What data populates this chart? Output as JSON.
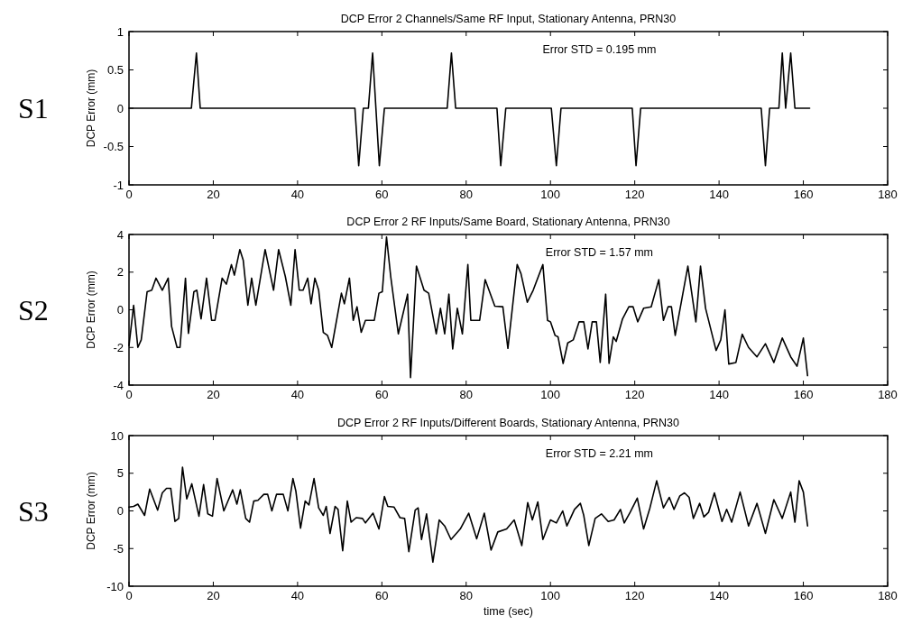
{
  "chart_data": [
    {
      "type": "line",
      "title": "DCP Error 2 Channels/Same RF Input, Stationary Antenna, PRN30",
      "ylabel": "DCP Error (mm)",
      "annotations": [
        "S1",
        "Error STD = 0.195 mm"
      ],
      "xlim": [
        0,
        180
      ],
      "xticks": [
        0,
        20,
        40,
        60,
        80,
        100,
        120,
        140,
        160,
        180
      ],
      "ylim": [
        -1,
        1
      ],
      "yticks": [
        -1,
        {
          "value": -0.5,
          "label": "-0.5"
        },
        0,
        {
          "value": 0.5,
          "label": "0.5"
        },
        1
      ],
      "grid": false,
      "series": [
        {
          "color": "#000000",
          "x": [
            0,
            14.8,
            16,
            16.9,
            53.6,
            54.5,
            55.6,
            56.8,
            57.8,
            59.4,
            60.6,
            75.5,
            76.5,
            77.5,
            87.3,
            88.2,
            89.4,
            100.2,
            101.4,
            102.5,
            119.4,
            120.3,
            121.4,
            150,
            151,
            152,
            154.2,
            155,
            155.8,
            157,
            158,
            161.5
          ],
          "values": [
            0,
            0,
            0.72,
            0,
            0,
            -0.75,
            0,
            0,
            0.72,
            -0.75,
            0,
            0,
            0.72,
            0,
            0,
            -0.75,
            0,
            0,
            -0.75,
            0,
            0,
            -0.75,
            0,
            0,
            -0.75,
            0,
            0,
            0.72,
            0,
            0.72,
            0,
            0
          ]
        }
      ]
    },
    {
      "type": "line",
      "title": "DCP Error 2 RF Inputs/Same Board, Stationary Antenna, PRN30",
      "ylabel": "DCP Error (mm)",
      "annotations": [
        "S2",
        "Error STD = 1.57 mm"
      ],
      "xlim": [
        0,
        180
      ],
      "xticks": [
        0,
        20,
        40,
        60,
        80,
        100,
        120,
        140,
        160,
        180
      ],
      "ylim": [
        -4,
        4
      ],
      "yticks": [
        -4,
        -2,
        0,
        2,
        4
      ],
      "grid": false,
      "series": [
        {
          "color": "#000000",
          "x": [
            0,
            1.1,
            2.1,
            2.9,
            4.3,
            5.4,
            6.4,
            7.9,
            9.3,
            10.1,
            11.4,
            12.1,
            13.4,
            14.1,
            15.4,
            16.1,
            17.1,
            18.4,
            19.6,
            20.4,
            22.1,
            23.1,
            24.3,
            25,
            26.3,
            27.1,
            28.2,
            29.1,
            30.1,
            32.3,
            34.3,
            35.5,
            37.1,
            38.4,
            39.4,
            40.4,
            41.3,
            42.4,
            43.2,
            44.1,
            45,
            46.1,
            47.1,
            48.1,
            50.4,
            51.1,
            52.3,
            53.2,
            54.1,
            55.1,
            56.1,
            58.2,
            59.3,
            60.1,
            61.1,
            62.1,
            63.9,
            66.1,
            66.8,
            68.2,
            70,
            71.1,
            72.9,
            73.9,
            74.9,
            75.9,
            76.8,
            77.9,
            79.1,
            80.4,
            81.1,
            83.2,
            84.5,
            86.8,
            88.7,
            89.9,
            92.1,
            93,
            94.5,
            95.9,
            98.2,
            99.3,
            100,
            101.1,
            101.8,
            103,
            104.1,
            105.4,
            106.8,
            107.9,
            108.9,
            109.9,
            110.9,
            111.8,
            113.1,
            113.9,
            114.9,
            115.6,
            117.1,
            118.6,
            119.6,
            120.7,
            122.1,
            123.9,
            125.7,
            126.8,
            127.9,
            128.7,
            129.6,
            132.6,
            134.5,
            135.6,
            136.8,
            139.3,
            140.4,
            141.4,
            142.3,
            144,
            145.5,
            147,
            149,
            151,
            153,
            155,
            157,
            158.5,
            160,
            161
          ],
          "values": [
            -1.9,
            0.24,
            -2,
            -1.6,
            0.96,
            1.04,
            1.68,
            1.04,
            1.68,
            -0.88,
            -2,
            -2,
            1.68,
            -1.25,
            0.96,
            1.04,
            -0.48,
            1.68,
            -0.56,
            -0.56,
            1.68,
            1.36,
            2.4,
            1.84,
            3.2,
            2.64,
            0.24,
            1.68,
            0.24,
            3.2,
            1.04,
            3.2,
            1.76,
            0.24,
            3.2,
            1.04,
            1.04,
            1.68,
            0.32,
            1.68,
            1.04,
            -1.2,
            -1.36,
            -2,
            0.88,
            0.32,
            1.68,
            -0.56,
            0.16,
            -1.2,
            -0.56,
            -0.56,
            0.88,
            0.96,
            3.87,
            1.76,
            -1.28,
            0.83,
            -3.6,
            2.32,
            1.04,
            0.88,
            -1.28,
            0.08,
            -1.28,
            0.83,
            -2.08,
            0.08,
            -1.28,
            2.4,
            -0.56,
            -0.56,
            1.6,
            0.19,
            0.16,
            -2.05,
            2.4,
            1.92,
            0.4,
            1.04,
            2.4,
            -0.56,
            -0.64,
            -1.36,
            -1.44,
            -2.85,
            -1.76,
            -1.6,
            -0.64,
            -0.64,
            -2.08,
            -0.64,
            -0.64,
            -2.8,
            0.83,
            -2.85,
            -1.44,
            -1.68,
            -0.48,
            0.16,
            0.16,
            -0.64,
            0.08,
            0.16,
            1.6,
            -0.56,
            0.16,
            0.16,
            -1.36,
            2.32,
            -0.64,
            2.32,
            0.08,
            -2.16,
            -1.6,
            0,
            -2.88,
            -2.8,
            -1.3,
            -2,
            -2.5,
            -1.8,
            -2.8,
            -1.5,
            -2.5,
            -3,
            -1.5,
            -3.5
          ]
        }
      ]
    },
    {
      "type": "line",
      "title": "DCP Error 2 RF Inputs/Different Boards, Stationary Antenna, PRN30",
      "xlabel": "time (sec)",
      "ylabel": "DCP Error (mm)",
      "annotations": [
        "S3",
        "Error STD = 2.21 mm"
      ],
      "xlim": [
        0,
        180
      ],
      "xticks": [
        0,
        20,
        40,
        60,
        80,
        100,
        120,
        140,
        160,
        180
      ],
      "ylim": [
        -10,
        10
      ],
      "yticks": [
        -10,
        -5,
        0,
        5,
        10
      ],
      "grid": false,
      "series": [
        {
          "color": "#000000",
          "x": [
            0,
            1.1,
            2.1,
            3.7,
            4.9,
            6.8,
            7.9,
            8.9,
            9.9,
            10.9,
            11.8,
            12.7,
            13.7,
            14.9,
            16.6,
            17.7,
            18.7,
            19.8,
            20.9,
            22.5,
            24.6,
            25.6,
            26.4,
            27.7,
            28.6,
            29.6,
            30.6,
            32,
            32.9,
            33.9,
            35,
            36.6,
            37.7,
            38.9,
            39.6,
            40.7,
            41.8,
            42.7,
            43.9,
            45,
            46.1,
            46.8,
            47.7,
            48.9,
            49.6,
            50.7,
            51.8,
            52.7,
            53.9,
            55.4,
            56.1,
            57.9,
            59.3,
            60.6,
            61.4,
            62.9,
            64.3,
            65.4,
            66.4,
            67.9,
            68.6,
            69.4,
            70.6,
            72.1,
            73.6,
            74.9,
            76.4,
            78.6,
            80.6,
            82.5,
            84.3,
            85.9,
            87.5,
            89.6,
            91.4,
            93.2,
            94.6,
            95.7,
            97,
            98.2,
            100,
            101.4,
            102.9,
            103.9,
            105.7,
            107.1,
            107.9,
            109.1,
            110.6,
            112.1,
            113.7,
            115.1,
            116.6,
            117.5,
            118.9,
            120.6,
            122.1,
            123.6,
            125.2,
            126.8,
            128.2,
            129.3,
            130.7,
            131.8,
            132.9,
            133.9,
            135.4,
            136.4,
            137.5,
            138.9,
            140.7,
            141.8,
            143,
            145,
            147,
            149,
            151,
            153,
            155,
            157,
            158,
            159,
            160,
            161
          ],
          "values": [
            0.5,
            0.6,
            0.9,
            -0.6,
            2.9,
            0.1,
            2.4,
            3,
            3,
            -1.4,
            -1,
            5.8,
            1.6,
            3.6,
            -0.7,
            3.5,
            -0.4,
            -0.7,
            4.3,
            0,
            2.8,
            0.9,
            2.8,
            -1,
            -1.5,
            1.3,
            1.4,
            2.2,
            2.2,
            0,
            2.2,
            2.2,
            0,
            4.3,
            2.6,
            -2.3,
            1.3,
            0.8,
            4.3,
            0.4,
            -0.6,
            0.6,
            -3,
            0.6,
            0.2,
            -5.3,
            1.3,
            -1.5,
            -0.9,
            -1,
            -1.6,
            -0.3,
            -2.4,
            1.9,
            0.6,
            0.5,
            -0.9,
            -1,
            -5.4,
            0.1,
            0.4,
            -3.8,
            -0.4,
            -6.8,
            -1.2,
            -2,
            -3.8,
            -2.4,
            -0.3,
            -3.7,
            -0.3,
            -5.2,
            -2.8,
            -2.4,
            -1.2,
            -4.6,
            1.1,
            -1.2,
            1.2,
            -3.8,
            -1.2,
            -1.6,
            0,
            -2,
            0.2,
            1,
            -0.6,
            -4.6,
            -1,
            -0.4,
            -1.4,
            -1.2,
            0.2,
            -1.6,
            -0.2,
            1.7,
            -2.4,
            0.4,
            4,
            0.4,
            1.8,
            0.2,
            2,
            2.4,
            1.8,
            -1,
            1,
            -0.8,
            -0.2,
            2.4,
            -1.4,
            0.2,
            -1.5,
            2.5,
            -2,
            1,
            -3,
            1.5,
            -1,
            2.5,
            -1.5,
            4,
            2.5,
            -2
          ]
        }
      ]
    }
  ]
}
